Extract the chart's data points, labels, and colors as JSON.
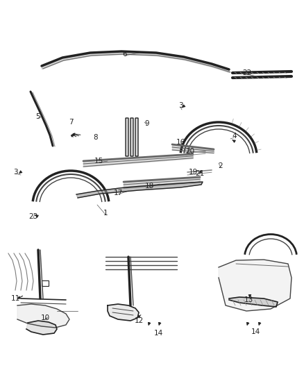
{
  "bg_color": "#ffffff",
  "lc": "#444444",
  "dc": "#222222",
  "gc": "#666666",
  "figsize": [
    4.38,
    5.33
  ],
  "dpi": 100,
  "labels": [
    [
      "1",
      152,
      307,
      7.5
    ],
    [
      "2",
      318,
      239,
      7.5
    ],
    [
      "3",
      22,
      248,
      7.5
    ],
    [
      "3",
      260,
      152,
      7.5
    ],
    [
      "4",
      338,
      196,
      7.5
    ],
    [
      "5",
      55,
      168,
      7.5
    ],
    [
      "6",
      180,
      78,
      7.5
    ],
    [
      "7",
      102,
      176,
      7.5
    ],
    [
      "8",
      138,
      198,
      7.5
    ],
    [
      "9",
      212,
      178,
      7.5
    ],
    [
      "10",
      65,
      458,
      7.5
    ],
    [
      "11",
      22,
      430,
      7.5
    ],
    [
      "12",
      200,
      462,
      7.5
    ],
    [
      "13",
      358,
      432,
      7.5
    ],
    [
      "14",
      228,
      480,
      7.5
    ],
    [
      "14",
      368,
      478,
      7.5
    ],
    [
      "15",
      142,
      232,
      7.5
    ],
    [
      "16",
      260,
      205,
      7.5
    ],
    [
      "17",
      170,
      278,
      7.5
    ],
    [
      "18",
      215,
      268,
      7.5
    ],
    [
      "19",
      278,
      248,
      7.5
    ],
    [
      "20",
      274,
      218,
      7.5
    ],
    [
      "21",
      288,
      250,
      7.5
    ],
    [
      "22",
      356,
      105,
      7.5
    ],
    [
      "23",
      48,
      312,
      7.5
    ]
  ]
}
